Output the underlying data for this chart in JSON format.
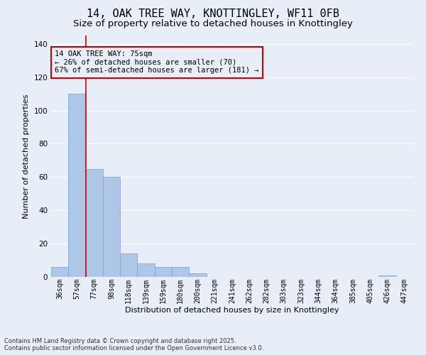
{
  "title1": "14, OAK TREE WAY, KNOTTINGLEY, WF11 0FB",
  "title2": "Size of property relative to detached houses in Knottingley",
  "xlabel": "Distribution of detached houses by size in Knottingley",
  "ylabel": "Number of detached properties",
  "categories": [
    "36sqm",
    "57sqm",
    "77sqm",
    "98sqm",
    "118sqm",
    "139sqm",
    "159sqm",
    "180sqm",
    "200sqm",
    "221sqm",
    "241sqm",
    "262sqm",
    "282sqm",
    "303sqm",
    "323sqm",
    "344sqm",
    "364sqm",
    "385sqm",
    "405sqm",
    "426sqm",
    "447sqm"
  ],
  "values": [
    6,
    110,
    65,
    60,
    14,
    8,
    6,
    6,
    2,
    0,
    0,
    0,
    0,
    0,
    0,
    0,
    0,
    0,
    0,
    1,
    0
  ],
  "bar_color": "#aec6e8",
  "bar_edge_color": "#7aafd4",
  "vline_color": "#cc0000",
  "annotation_text": "14 OAK TREE WAY: 75sqm\n← 26% of detached houses are smaller (70)\n67% of semi-detached houses are larger (181) →",
  "annotation_box_color": "#cc0000",
  "ylim": [
    0,
    145
  ],
  "yticks": [
    0,
    20,
    40,
    60,
    80,
    100,
    120,
    140
  ],
  "background_color": "#e8eef8",
  "grid_color": "#ffffff",
  "footer1": "Contains HM Land Registry data © Crown copyright and database right 2025.",
  "footer2": "Contains public sector information licensed under the Open Government Licence v3.0.",
  "title_fontsize": 11,
  "subtitle_fontsize": 9.5,
  "axis_label_fontsize": 8,
  "tick_fontsize": 7,
  "annotation_fontsize": 7.5
}
